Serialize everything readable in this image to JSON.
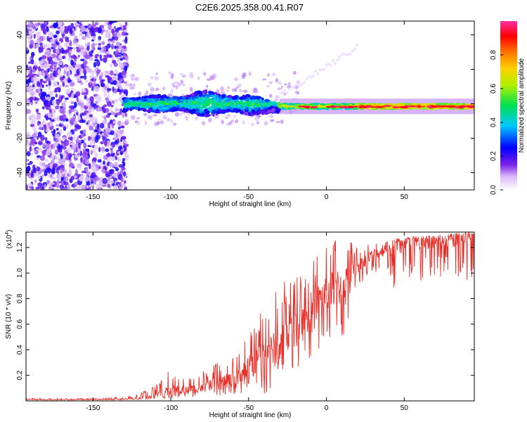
{
  "title": "C2E6.2025.358.00.41.R07",
  "chart_data": [
    {
      "type": "heatmap",
      "xlabel": "Height of straight line (km)",
      "ylabel": "Frequency (Hz)",
      "xlim": [
        -193,
        95
      ],
      "ylim": [
        -50,
        48
      ],
      "xticks": [
        -150,
        -100,
        -50,
        0,
        50
      ],
      "yticks": [
        -40,
        -20,
        0,
        20,
        40
      ],
      "colorbar": {
        "label": "Normalized spectral amplitude",
        "range": [
          0,
          1
        ],
        "ticks": [
          "0.0",
          "0.2",
          "0.4",
          "0.6",
          "0.8"
        ],
        "tick_values": [
          0.0,
          0.2,
          0.4,
          0.6,
          0.8
        ]
      },
      "regions": [
        {
          "name": "noise",
          "x_range": [
            -193,
            -128
          ],
          "freq_range": [
            -50,
            48
          ],
          "amplitude": [
            0.05,
            0.25
          ]
        },
        {
          "name": "noisy-signal",
          "x_range": [
            -130,
            -30
          ],
          "freq_center": 0,
          "freq_halfwidth": 5,
          "amplitude": [
            0.2,
            0.5
          ]
        },
        {
          "name": "signal",
          "x_range": [
            -30,
            95
          ],
          "freq_center": -1.5,
          "freq_halfwidth": 1.5,
          "amplitude": [
            0.6,
            1.0
          ]
        }
      ]
    },
    {
      "type": "line",
      "xlabel": "Height of straight line (km)",
      "ylabel": "SNR (10 * v/v)",
      "ylabel_exp": "(x10",
      "ylabel_exp_power": "4",
      "xlim": [
        -193,
        95
      ],
      "ylim": [
        0,
        1.32
      ],
      "xticks": [
        -150,
        -100,
        -50,
        0,
        50
      ],
      "yticks": [
        0.2,
        0.4,
        0.6,
        0.8,
        1.0,
        1.2
      ],
      "ytick_labels": [
        "0.2",
        "0.4",
        "0.6",
        "0.8",
        "1.0",
        "1.2"
      ],
      "series": [
        {
          "name": "SNR",
          "color": "#e8302a",
          "x": [
            -193,
            -150,
            -130,
            -120,
            -110,
            -100,
            -90,
            -80,
            -70,
            -60,
            -50,
            -40,
            -30,
            -20,
            -10,
            0,
            10,
            20,
            30,
            40,
            45,
            50,
            60,
            70,
            80,
            95
          ],
          "base": [
            0.01,
            0.01,
            0.015,
            0.02,
            0.04,
            0.08,
            0.09,
            0.1,
            0.14,
            0.17,
            0.26,
            0.36,
            0.42,
            0.58,
            0.72,
            0.85,
            0.9,
            1.05,
            1.15,
            1.18,
            1.2,
            1.22,
            1.24,
            1.25,
            1.26,
            1.28
          ],
          "peak": [
            0.02,
            0.02,
            0.03,
            0.06,
            0.12,
            0.26,
            0.2,
            0.23,
            0.3,
            0.38,
            0.55,
            0.75,
            0.95,
            1.0,
            1.1,
            1.2,
            1.32,
            1.2,
            1.24,
            1.25,
            1.27,
            1.28,
            1.29,
            1.3,
            1.31,
            1.32
          ],
          "dip": [
            0.005,
            0.005,
            0.008,
            0.01,
            0.01,
            0.02,
            0.03,
            0.03,
            0.04,
            0.05,
            0.04,
            0.05,
            0.1,
            0.2,
            0.35,
            0.4,
            0.45,
            0.9,
            1.0,
            1.02,
            0.75,
            0.9,
            0.92,
            0.95,
            0.95,
            0.9
          ]
        }
      ]
    }
  ]
}
